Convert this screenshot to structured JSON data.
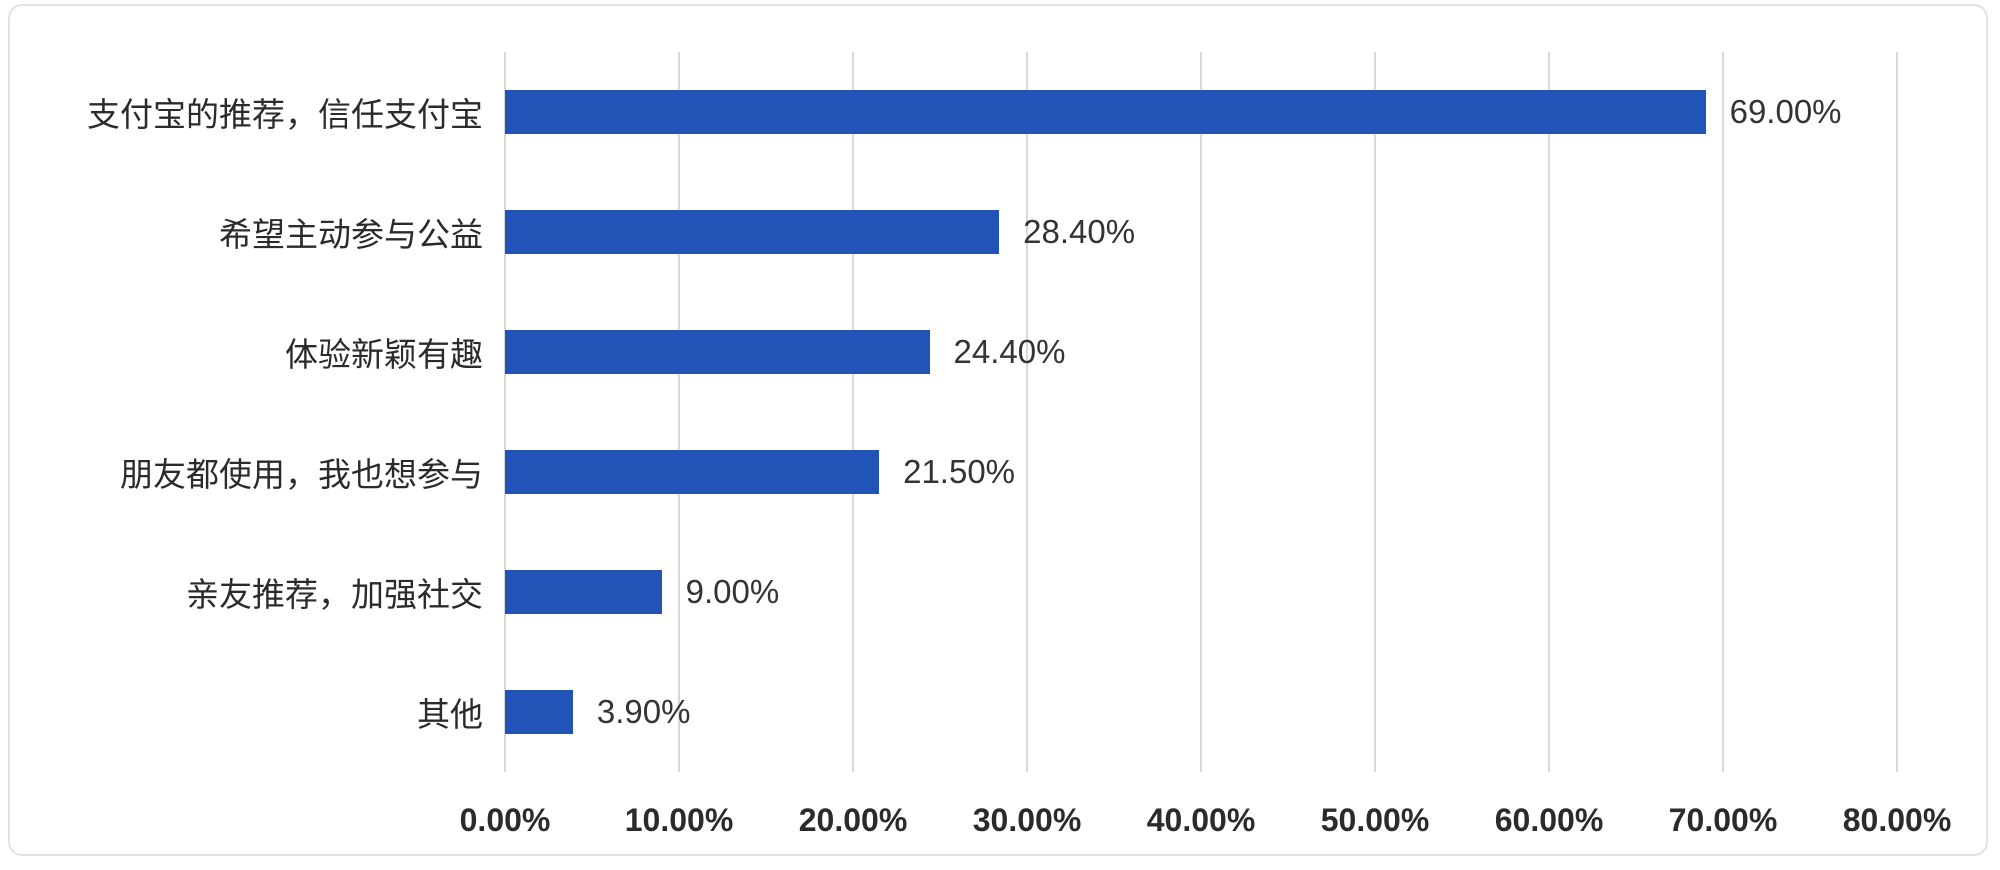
{
  "chart_data": {
    "type": "bar",
    "orientation": "horizontal",
    "title": "",
    "xlabel": "",
    "ylabel": "",
    "categories": [
      "支付宝的推荐，信任支付宝",
      "希望主动参与公益",
      "体验新颖有趣",
      "朋友都使用，我也想参与",
      "亲友推荐，加强社交",
      "其他"
    ],
    "values": [
      69.0,
      28.4,
      24.4,
      21.5,
      9.0,
      3.9
    ],
    "value_labels": [
      "69.00%",
      "28.40%",
      "24.40%",
      "21.50%",
      "9.00%",
      "3.90%"
    ],
    "xlim": [
      0,
      80
    ],
    "x_tick_values": [
      0,
      10,
      20,
      30,
      40,
      50,
      60,
      70,
      80
    ],
    "x_tick_labels": [
      "0.00%",
      "10.00%",
      "20.00%",
      "30.00%",
      "40.00%",
      "50.00%",
      "60.00%",
      "70.00%",
      "80.00%"
    ],
    "grid": true,
    "legend": "none",
    "bar_color": "#2154B6",
    "text_color": "#2B2B2B",
    "gridline_color": "#D9D9D9",
    "frame_border_color": "#E2E2E2"
  }
}
